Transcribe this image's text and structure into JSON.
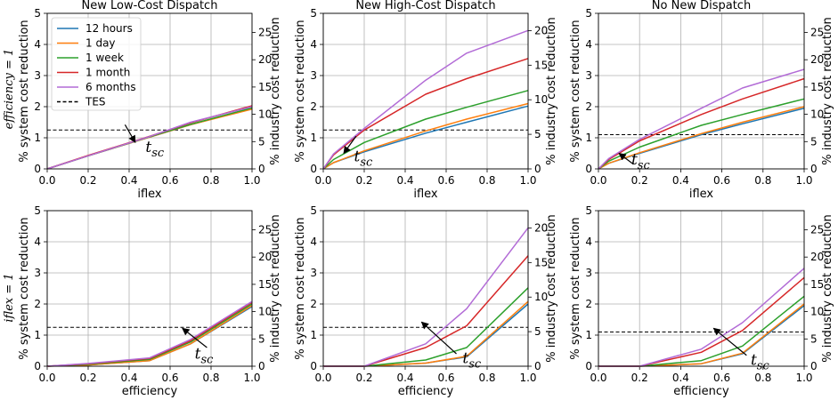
{
  "colors": {
    "12 hours": "#1f77b4",
    "1 day": "#ff7f0e",
    "1 week": "#2ca02c",
    "1 month": "#d62728",
    "6 months": "#b26bd6",
    "TES": "#000000"
  },
  "row_labels": [
    "efficiency = 1",
    "iflex = 1"
  ],
  "legend": [
    "12 hours",
    "1 day",
    "1 week",
    "1 month",
    "6 months",
    "TES"
  ],
  "annotation": "t_sc",
  "chart_data": [
    {
      "type": "line",
      "title": "New Low-Cost Dispatch",
      "xlabel": "iflex",
      "ylabel": "% system cost reduction",
      "ylabel_right": "% industry cost reduction",
      "xlim": [
        0,
        1
      ],
      "ylim": [
        0,
        5
      ],
      "ylim_right": [
        0,
        28.5
      ],
      "right_ticks": [
        0,
        5,
        10,
        15,
        20,
        25
      ],
      "tes": 1.25,
      "arrow": {
        "x": 0.43,
        "y": 0.85,
        "tx": 0.38,
        "ty": 1.42
      },
      "label_at": {
        "x": 0.48,
        "y": 0.55
      },
      "x": [
        0,
        0.2,
        0.5,
        0.7,
        1.0
      ],
      "series": [
        {
          "name": "12 hours",
          "values": [
            0,
            0.42,
            1.02,
            1.42,
            1.95
          ]
        },
        {
          "name": "1 day",
          "values": [
            0,
            0.42,
            1.02,
            1.42,
            1.92
          ]
        },
        {
          "name": "1 week",
          "values": [
            0,
            0.42,
            1.03,
            1.43,
            1.96
          ]
        },
        {
          "name": "1 month",
          "values": [
            0,
            0.43,
            1.05,
            1.48,
            2.03
          ]
        },
        {
          "name": "6 months",
          "values": [
            0,
            0.42,
            1.04,
            1.5,
            2.0
          ]
        }
      ]
    },
    {
      "type": "line",
      "title": "New High-Cost Dispatch",
      "xlabel": "iflex",
      "ylabel": "% system cost reduction",
      "ylabel_right": "% industry cost reduction",
      "xlim": [
        0,
        1
      ],
      "ylim": [
        0,
        5
      ],
      "ylim_right": [
        0,
        22.5
      ],
      "right_ticks": [
        0,
        5,
        10,
        15,
        20
      ],
      "tes": 1.25,
      "arrow": {
        "x": 0.1,
        "y": 0.5,
        "tx": 0.16,
        "ty": 1.05
      },
      "label_at": {
        "x": 0.15,
        "y": 0.25
      },
      "x": [
        0,
        0.05,
        0.2,
        0.5,
        0.7,
        1.0
      ],
      "series": [
        {
          "name": "12 hours",
          "values": [
            0,
            0.2,
            0.55,
            1.15,
            1.5,
            2.02
          ]
        },
        {
          "name": "1 day",
          "values": [
            0,
            0.2,
            0.58,
            1.22,
            1.6,
            2.1
          ]
        },
        {
          "name": "1 week",
          "values": [
            0,
            0.3,
            0.85,
            1.6,
            1.98,
            2.52
          ]
        },
        {
          "name": "1 month",
          "values": [
            0,
            0.45,
            1.25,
            2.4,
            2.9,
            3.55
          ]
        },
        {
          "name": "6 months",
          "values": [
            0,
            0.48,
            1.3,
            2.85,
            3.72,
            4.45
          ]
        }
      ]
    },
    {
      "type": "line",
      "title": "No New Dispatch",
      "xlabel": "iflex",
      "ylabel": "% system cost reduction",
      "ylabel_right": "% industry cost reduction",
      "xlim": [
        0,
        1
      ],
      "ylim": [
        0,
        5
      ],
      "ylim_right": [
        0,
        28.5
      ],
      "right_ticks": [
        0,
        5,
        10,
        15,
        20,
        25
      ],
      "tes": 1.1,
      "arrow": {
        "x": 0.1,
        "y": 0.5,
        "tx": 0.17,
        "ty": 0.15
      },
      "label_at": {
        "x": 0.16,
        "y": 0.15
      },
      "x": [
        0,
        0.05,
        0.2,
        0.5,
        0.7,
        1.0
      ],
      "series": [
        {
          "name": "12 hours",
          "values": [
            0,
            0.18,
            0.5,
            1.1,
            1.45,
            1.95
          ]
        },
        {
          "name": "1 day",
          "values": [
            0,
            0.18,
            0.52,
            1.13,
            1.5,
            2.0
          ]
        },
        {
          "name": "1 week",
          "values": [
            0,
            0.25,
            0.7,
            1.4,
            1.75,
            2.25
          ]
        },
        {
          "name": "1 month",
          "values": [
            0,
            0.3,
            0.9,
            1.75,
            2.25,
            2.9
          ]
        },
        {
          "name": "6 months",
          "values": [
            0,
            0.33,
            0.95,
            1.95,
            2.6,
            3.2
          ]
        }
      ]
    },
    {
      "type": "line",
      "title": "",
      "xlabel": "efficiency",
      "ylabel": "% system cost reduction",
      "ylabel_right": "% industry cost reduction",
      "xlim": [
        0,
        1
      ],
      "ylim": [
        0,
        5
      ],
      "ylim_right": [
        0,
        28.5
      ],
      "right_ticks": [
        0,
        5,
        10,
        15,
        20,
        25
      ],
      "tes": 1.25,
      "arrow": {
        "x": 0.66,
        "y": 1.22,
        "tx": 0.78,
        "ty": 0.6
      },
      "label_at": {
        "x": 0.72,
        "y": 0.25
      },
      "x": [
        0,
        0.2,
        0.5,
        0.7,
        1.0
      ],
      "series": [
        {
          "name": "12 hours",
          "values": [
            0,
            0.04,
            0.18,
            0.72,
            1.92
          ]
        },
        {
          "name": "1 day",
          "values": [
            0,
            0.04,
            0.18,
            0.72,
            1.95
          ]
        },
        {
          "name": "1 week",
          "values": [
            0,
            0.06,
            0.22,
            0.78,
            2.0
          ]
        },
        {
          "name": "1 month",
          "values": [
            0,
            0.08,
            0.25,
            0.82,
            2.05
          ]
        },
        {
          "name": "6 months",
          "values": [
            0,
            0.09,
            0.27,
            0.86,
            2.08
          ]
        }
      ]
    },
    {
      "type": "line",
      "title": "",
      "xlabel": "efficiency",
      "ylabel": "% system cost reduction",
      "ylabel_right": "% industry cost reduction",
      "xlim": [
        0,
        1
      ],
      "ylim": [
        0,
        5
      ],
      "ylim_right": [
        0,
        22.5
      ],
      "right_ticks": [
        0,
        5,
        10,
        15,
        20
      ],
      "tes": 1.25,
      "arrow": {
        "x": 0.48,
        "y": 1.42,
        "tx": 0.65,
        "ty": 0.4
      },
      "label_at": {
        "x": 0.68,
        "y": 0.1
      },
      "x": [
        0,
        0.2,
        0.5,
        0.7,
        1.0
      ],
      "series": [
        {
          "name": "12 hours",
          "values": [
            0,
            0,
            0.1,
            0.3,
            2.0
          ]
        },
        {
          "name": "1 day",
          "values": [
            0,
            0,
            0.1,
            0.32,
            2.08
          ]
        },
        {
          "name": "1 week",
          "values": [
            0,
            0,
            0.2,
            0.6,
            2.52
          ]
        },
        {
          "name": "1 month",
          "values": [
            0,
            0,
            0.6,
            1.3,
            3.55
          ]
        },
        {
          "name": "6 months",
          "values": [
            0,
            0,
            0.72,
            1.85,
            4.45
          ]
        }
      ]
    },
    {
      "type": "line",
      "title": "",
      "xlabel": "efficiency",
      "ylabel": "% system cost reduction",
      "ylabel_right": "% industry cost reduction",
      "xlim": [
        0,
        1
      ],
      "ylim": [
        0,
        5
      ],
      "ylim_right": [
        0,
        28.5
      ],
      "right_ticks": [
        0,
        5,
        10,
        15,
        20,
        25
      ],
      "tes": 1.1,
      "arrow": {
        "x": 0.56,
        "y": 1.22,
        "tx": 0.72,
        "ty": 0.35
      },
      "label_at": {
        "x": 0.74,
        "y": 0.05
      },
      "x": [
        0,
        0.2,
        0.5,
        0.7,
        1.0
      ],
      "series": [
        {
          "name": "12 hours",
          "values": [
            0,
            0,
            0.08,
            0.4,
            1.95
          ]
        },
        {
          "name": "1 day",
          "values": [
            0,
            0,
            0.08,
            0.42,
            2.0
          ]
        },
        {
          "name": "1 week",
          "values": [
            0,
            0,
            0.18,
            0.65,
            2.25
          ]
        },
        {
          "name": "1 month",
          "values": [
            0,
            0,
            0.45,
            1.15,
            2.85
          ]
        },
        {
          "name": "6 months",
          "values": [
            0,
            0,
            0.55,
            1.4,
            3.15
          ]
        }
      ]
    }
  ]
}
